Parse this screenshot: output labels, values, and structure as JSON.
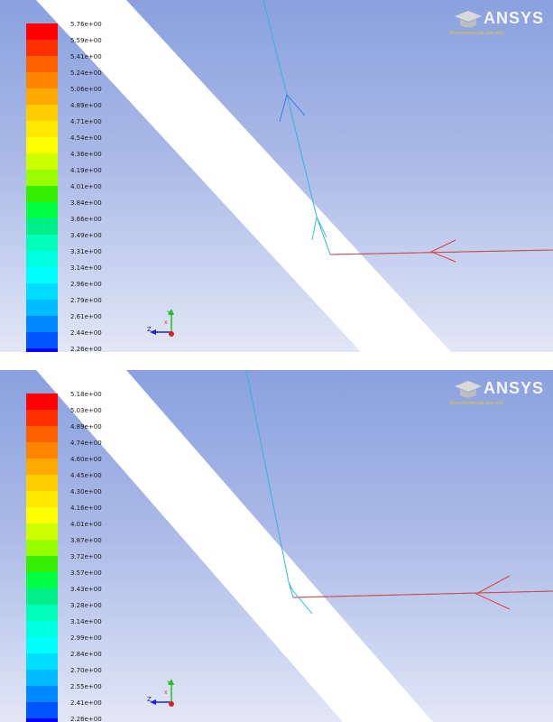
{
  "panels": [
    {
      "legend": {
        "labels": [
          "5.76e+00",
          "5.59e+00",
          "5.41e+00",
          "5.24e+00",
          "5.06e+00",
          "4.89e+00",
          "4.71e+00",
          "4.54e+00",
          "4.36e+00",
          "4.19e+00",
          "4.01e+00",
          "3.84e+00",
          "3.66e+00",
          "3.49e+00",
          "3.31e+00",
          "3.14e+00",
          "2.96e+00",
          "2.79e+00",
          "2.61e+00",
          "2.44e+00",
          "2.26e+00"
        ]
      },
      "logo": {
        "brand": "ANSYS",
        "subtitle": "Noncommercial use only"
      },
      "axes": {
        "y": "Y",
        "z": "Z",
        "x": "X"
      }
    },
    {
      "legend": {
        "labels": [
          "5.18e+00",
          "5.03e+00",
          "4.89e+00",
          "4.74e+00",
          "4.60e+00",
          "4.45e+00",
          "4.30e+00",
          "4.16e+00",
          "4.01e+00",
          "3.87e+00",
          "3.72e+00",
          "3.57e+00",
          "3.43e+00",
          "3.28e+00",
          "3.14e+00",
          "2.99e+00",
          "2.84e+00",
          "2.70e+00",
          "2.55e+00",
          "2.41e+00",
          "2.26e+00"
        ]
      },
      "logo": {
        "brand": "ANSYS",
        "subtitle": "Noncommercial use only"
      },
      "axes": {
        "y": "Y",
        "z": "Z",
        "x": "X"
      }
    }
  ],
  "colormap": [
    "#ff0000",
    "#ff3000",
    "#ff6000",
    "#ff8400",
    "#ffa800",
    "#ffcc00",
    "#ffe800",
    "#ffff00",
    "#ccff00",
    "#99ff00",
    "#33ee00",
    "#00ff44",
    "#00ee88",
    "#00ffbb",
    "#00ffe0",
    "#00ffff",
    "#00ddff",
    "#00bbff",
    "#0088ff",
    "#0055ff",
    "#0000ff"
  ]
}
